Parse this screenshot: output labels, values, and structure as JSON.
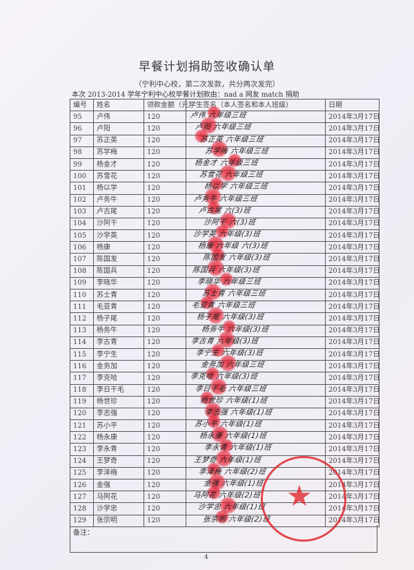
{
  "document": {
    "title": "早餐计划捐助签收确认单",
    "subtitle": "（宁利中心校，第二次发款，共分两次发完）",
    "intro": "本次 2013-2014 学年宁利中心校早餐计划款由：nad a 网友 match 捐助",
    "columns": [
      "编号",
      "姓名",
      "领款金额（元）",
      "学生签名（本人签名和本人班级）",
      "日期"
    ],
    "rows": [
      {
        "no": "95",
        "name": "卢伟",
        "amount": "120",
        "signature": "卢伟 六年级三班",
        "date": "2014年3月17日"
      },
      {
        "no": "96",
        "name": "卢阳",
        "amount": "120",
        "signature": "卢阳 六年级三班",
        "date": "2014年3月17日"
      },
      {
        "no": "97",
        "name": "苏正英",
        "amount": "120",
        "signature": "苏正英 六年级三班",
        "date": "2014年3月17日"
      },
      {
        "no": "98",
        "name": "苏学梅",
        "amount": "120",
        "signature": "苏学梅 六年级三班",
        "date": "2014年3月17日"
      },
      {
        "no": "99",
        "name": "杨金才",
        "amount": "120",
        "signature": "杨金才 六年级三班",
        "date": "2014年3月17日"
      },
      {
        "no": "100",
        "name": "苏雪花",
        "amount": "120",
        "signature": "苏雪花 六年级三班",
        "date": "2014年3月17日"
      },
      {
        "no": "101",
        "name": "杨以学",
        "amount": "120",
        "signature": "杨以学 六年级三班",
        "date": "2014年3月17日"
      },
      {
        "no": "102",
        "name": "卢务牛",
        "amount": "120",
        "signature": "卢务牛 六年级三班",
        "date": "2014年3月17日"
      },
      {
        "no": "103",
        "name": "卢古尾",
        "amount": "120",
        "signature": "卢古尾 六(3)班",
        "date": "2014年3月17日"
      },
      {
        "no": "104",
        "name": "沙阿干",
        "amount": "120",
        "signature": "沙阿干 六(3)班",
        "date": "2014年3月17日"
      },
      {
        "no": "105",
        "name": "沙学英",
        "amount": "120",
        "signature": "沙学英 六年级(3)班",
        "date": "2014年3月17日"
      },
      {
        "no": "106",
        "name": "杨康",
        "amount": "120",
        "signature": "杨康 六年级 六(3)班",
        "date": "2014年3月17日"
      },
      {
        "no": "107",
        "name": "陈国发",
        "amount": "120",
        "signature": "陈国发 六年级(3)班",
        "date": "2014年3月17日"
      },
      {
        "no": "108",
        "name": "陈国兵",
        "amount": "120",
        "signature": "陈国兵 六年级(3)班",
        "date": "2014年3月17日"
      },
      {
        "no": "109",
        "name": "李晓华",
        "amount": "120",
        "signature": "李晓华 六年级三班",
        "date": "2014年3月17日"
      },
      {
        "no": "110",
        "name": "苏士青",
        "amount": "120",
        "signature": "苏士青 六年级三班",
        "date": "2014年3月17日"
      },
      {
        "no": "111",
        "name": "毛亚青",
        "amount": "120",
        "signature": "毛亚青 六年级三班",
        "date": "2014年3月17日"
      },
      {
        "no": "112",
        "name": "杨子尾",
        "amount": "120",
        "signature": "杨子尾 六年级(3)班",
        "date": "2014年3月17日"
      },
      {
        "no": "113",
        "name": "杨务牛",
        "amount": "120",
        "signature": "杨务牛 六年级(3)班",
        "date": "2014年3月17日"
      },
      {
        "no": "114",
        "name": "李古青",
        "amount": "120",
        "signature": "李古青 六年级(3)班",
        "date": "2014年3月17日"
      },
      {
        "no": "115",
        "name": "李宁生",
        "amount": "120",
        "signature": "李宁生 六年级(3)班",
        "date": "2014年3月17日"
      },
      {
        "no": "116",
        "name": "金务加",
        "amount": "120",
        "signature": "金务加 六年级三班",
        "date": "2014年3月17日"
      },
      {
        "no": "117",
        "name": "李克哈",
        "amount": "120",
        "signature": "李克哈 六年级(3)班",
        "date": "2014年3月17日"
      },
      {
        "no": "118",
        "name": "李日干毛",
        "amount": "120",
        "signature": "李日干毛 六年级三班",
        "date": "2014年3月17日"
      },
      {
        "no": "119",
        "name": "杨世珍",
        "amount": "120",
        "signature": "杨世珍 六年级(1)班",
        "date": "2014年3月17日"
      },
      {
        "no": "120",
        "name": "李志强",
        "amount": "120",
        "signature": "李志强 六年级(1)班",
        "date": "2014年3月17日"
      },
      {
        "no": "121",
        "name": "苏小平",
        "amount": "120",
        "signature": "苏小平 六年级(1)班",
        "date": "2014年3月17日"
      },
      {
        "no": "122",
        "name": "杨永康",
        "amount": "120",
        "signature": "杨永康 六年级(1)班",
        "date": "2014年3月17日"
      },
      {
        "no": "123",
        "name": "李永青",
        "amount": "120",
        "signature": "李永青 六年级(1)班",
        "date": "2014年3月17日"
      },
      {
        "no": "124",
        "name": "王梦奇",
        "amount": "120",
        "signature": "王梦奇 六年级(1)班",
        "date": "2014年3月17日"
      },
      {
        "no": "125",
        "name": "李泽梅",
        "amount": "120",
        "signature": "李泽梅 六年级(2)班",
        "date": "2014年3月17日"
      },
      {
        "no": "126",
        "name": "金强",
        "amount": "120",
        "signature": "金强 六年级(1)班",
        "date": "2014年3月17日"
      },
      {
        "no": "127",
        "name": "马阿花",
        "amount": "120",
        "signature": "马阿花 六年级(2)班",
        "date": "2014年3月17日"
      },
      {
        "no": "128",
        "name": "沙学忠",
        "amount": "120",
        "signature": "沙学忠 六年级(1)班",
        "date": "2014年3月17日"
      },
      {
        "no": "129",
        "name": "张宗明",
        "amount": "120",
        "signature": "张宗明 六年级(2)班",
        "date": "2014年3月17日"
      }
    ],
    "remark_label": "备注：",
    "page_number": "4"
  },
  "colors": {
    "ink": "#333333",
    "fingerprint": "#e61428",
    "stamp": "#e1282d"
  }
}
